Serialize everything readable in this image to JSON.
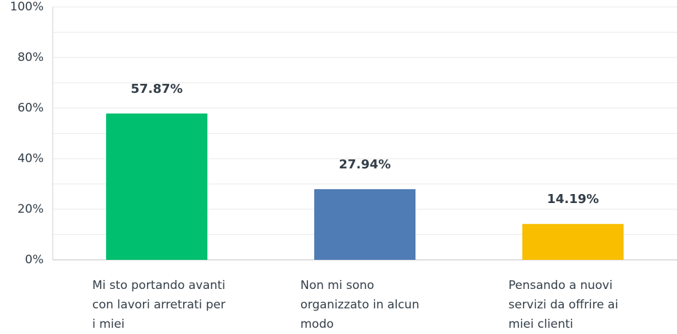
{
  "chart_data": {
    "type": "bar",
    "categories": [
      "Mi sto portando avanti con lavori arretrati per i miei",
      "Non mi sono organizzato in alcun modo",
      "Pensando a nuovi servizi da offrire ai miei clienti"
    ],
    "values": [
      57.87,
      27.94,
      14.19
    ],
    "value_labels": [
      "57.87%",
      "27.94%",
      "14.19%"
    ],
    "colors": [
      "#00bf6f",
      "#507cb6",
      "#f9be00"
    ],
    "ylim": [
      0,
      100
    ],
    "yticks": [
      {
        "value": 0,
        "label": "0%"
      },
      {
        "value": 20,
        "label": "20%"
      },
      {
        "value": 40,
        "label": "40%"
      },
      {
        "value": 60,
        "label": "60%"
      },
      {
        "value": 80,
        "label": "80%"
      },
      {
        "value": 100,
        "label": "100%"
      }
    ],
    "minor_yticks": [
      10,
      30,
      50,
      70,
      90
    ],
    "grid": true
  }
}
